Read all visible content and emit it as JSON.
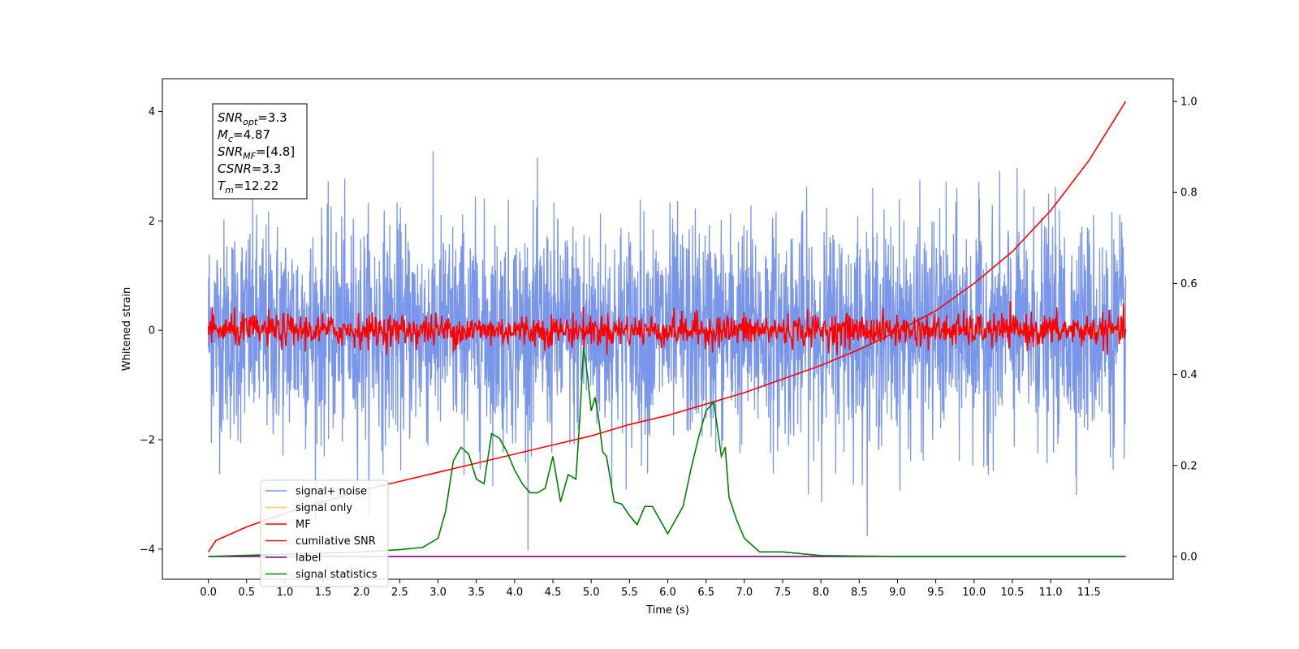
{
  "chart_data": {
    "type": "line",
    "xlabel": "Time (s)",
    "ylabel": "Whitened strain",
    "xlim": [
      -0.6,
      12.6
    ],
    "ylim": [
      -4.55,
      4.6
    ],
    "y2lim": [
      -0.05,
      1.05
    ],
    "x_ticks": [
      0.0,
      0.5,
      1.0,
      1.5,
      2.0,
      2.5,
      3.0,
      3.5,
      4.0,
      4.5,
      5.0,
      5.5,
      6.0,
      6.5,
      7.0,
      7.5,
      8.0,
      8.5,
      9.0,
      9.5,
      10.0,
      10.5,
      11.0,
      11.5
    ],
    "x_tick_labels": [
      "0.0",
      "0.5",
      "1.0",
      "1.5",
      "2.0",
      "2.5",
      "3.0",
      "3.5",
      "4.0",
      "4.5",
      "5.0",
      "5.5",
      "6.0",
      "6.5",
      "7.0",
      "7.5",
      "8.0",
      "8.5",
      "9.0",
      "9.5",
      "10.0",
      "10.5",
      "11.0",
      "11.5"
    ],
    "y_ticks": [
      -4,
      -2,
      0,
      2,
      4
    ],
    "y_tick_labels": [
      "−4",
      "−2",
      "0",
      "2",
      "4"
    ],
    "y2_ticks": [
      0.0,
      0.2,
      0.4,
      0.6,
      0.8,
      1.0
    ],
    "y2_tick_labels": [
      "0.0",
      "0.2",
      "0.4",
      "0.6",
      "0.8",
      "1.0"
    ],
    "grid": false,
    "legend_position": "lower-left",
    "annotation": {
      "lines": [
        {
          "sym": "SNR",
          "sub": "opt",
          "val": "=3.3"
        },
        {
          "sym": "M",
          "sub": "c",
          "val": "=4.87"
        },
        {
          "sym": "SNR",
          "sub": "MF",
          "val": "=[4.8]"
        },
        {
          "sym": "CSNR",
          "sub": "",
          "val": "=3.3"
        },
        {
          "sym": "T",
          "sub": "m",
          "val": "=12.22"
        }
      ]
    },
    "series": [
      {
        "name": "signal+ noise",
        "color": "#4169e1",
        "opacity": 0.7,
        "axis": "left",
        "kind": "noise",
        "t_range": [
          0.0,
          11.98
        ],
        "n_points": 3000,
        "amplitude_sd": 1.0,
        "envelope": [
          -4.15,
          4.2
        ]
      },
      {
        "name": "signal only",
        "color": "#ffa500",
        "opacity": 0.6,
        "axis": "left",
        "kind": "chirp",
        "t_range": [
          0.0,
          11.98
        ],
        "amplitude": 0.05
      },
      {
        "name": "MF",
        "color": "#ff0000",
        "opacity": 1.0,
        "axis": "left",
        "kind": "noise",
        "t_range": [
          0.0,
          11.98
        ],
        "n_points": 1400,
        "amplitude_sd": 0.15,
        "envelope": [
          -0.45,
          1.0
        ]
      },
      {
        "name": "cumilative SNR",
        "color": "#ff0000",
        "opacity": 1.0,
        "axis": "right",
        "x": [
          0.0,
          0.1,
          0.5,
          1.0,
          1.5,
          2.0,
          2.5,
          3.0,
          3.5,
          4.0,
          4.5,
          5.0,
          5.5,
          6.0,
          6.5,
          7.0,
          7.5,
          8.0,
          8.5,
          9.0,
          9.5,
          10.0,
          10.5,
          11.0,
          11.5,
          11.98
        ],
        "y": [
          0.01,
          0.035,
          0.065,
          0.095,
          0.12,
          0.145,
          0.165,
          0.185,
          0.205,
          0.225,
          0.245,
          0.265,
          0.29,
          0.31,
          0.335,
          0.36,
          0.39,
          0.42,
          0.455,
          0.495,
          0.54,
          0.6,
          0.67,
          0.76,
          0.87,
          1.0
        ]
      },
      {
        "name": "label",
        "color": "#800080",
        "opacity": 1.0,
        "axis": "right",
        "x": [
          0.0,
          11.98
        ],
        "y": [
          0.0,
          0.0
        ]
      },
      {
        "name": "signal statistics",
        "color": "#008000",
        "opacity": 1.0,
        "axis": "right",
        "x": [
          0.0,
          1.0,
          2.0,
          2.5,
          2.8,
          3.0,
          3.1,
          3.2,
          3.3,
          3.4,
          3.5,
          3.6,
          3.7,
          3.8,
          3.9,
          4.0,
          4.1,
          4.2,
          4.3,
          4.4,
          4.5,
          4.6,
          4.7,
          4.8,
          4.85,
          4.9,
          4.95,
          5.0,
          5.05,
          5.1,
          5.15,
          5.2,
          5.3,
          5.4,
          5.5,
          5.6,
          5.7,
          5.8,
          5.9,
          6.0,
          6.1,
          6.2,
          6.3,
          6.4,
          6.5,
          6.6,
          6.7,
          6.75,
          6.8,
          6.9,
          7.0,
          7.2,
          7.5,
          8.0,
          9.0,
          10.0,
          11.0,
          11.98
        ],
        "y": [
          0.0,
          0.005,
          0.01,
          0.015,
          0.02,
          0.04,
          0.1,
          0.21,
          0.24,
          0.225,
          0.17,
          0.16,
          0.27,
          0.26,
          0.23,
          0.19,
          0.16,
          0.14,
          0.14,
          0.15,
          0.22,
          0.12,
          0.18,
          0.17,
          0.3,
          0.46,
          0.4,
          0.32,
          0.35,
          0.3,
          0.23,
          0.22,
          0.12,
          0.115,
          0.09,
          0.07,
          0.11,
          0.11,
          0.08,
          0.05,
          0.08,
          0.11,
          0.19,
          0.26,
          0.32,
          0.34,
          0.22,
          0.24,
          0.13,
          0.08,
          0.04,
          0.01,
          0.01,
          0.002,
          0.0,
          0.0,
          0.0,
          0.0
        ]
      }
    ]
  }
}
